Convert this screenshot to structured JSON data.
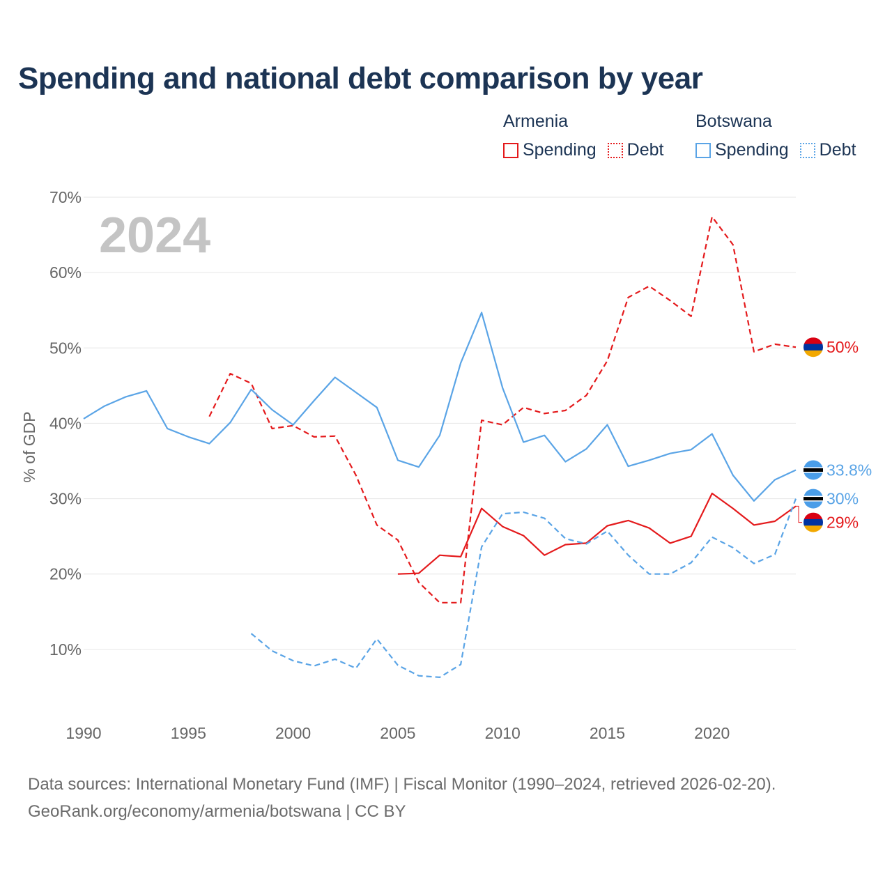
{
  "title": "Spending and national debt comparison by year",
  "legend": {
    "armenia": {
      "name": "Armenia",
      "spending": "Spending",
      "debt": "Debt"
    },
    "botswana": {
      "name": "Botswana",
      "spending": "Spending",
      "debt": "Debt"
    }
  },
  "colors": {
    "armenia": "#e41a1c",
    "botswana": "#5aa4e6",
    "grid": "#e6e6e6",
    "axis_text": "#666666",
    "year_watermark": "#c4c4c4"
  },
  "footer": {
    "line1": "Data sources: International Monetary Fund (IMF) | Fiscal Monitor (1990–2024, retrieved 2026-02-20).",
    "line2": "GeoRank.org/economy/armenia/botswana | CC BY"
  },
  "chart_data": {
    "type": "line",
    "title": "Spending and national debt comparison by year",
    "year_label": "2024",
    "ylabel": "% of GDP",
    "xlabel": "",
    "xlim": [
      1990,
      2024
    ],
    "ylim": [
      0,
      70
    ],
    "x_ticks": [
      "1990",
      "1995",
      "2000",
      "2005",
      "2010",
      "2015",
      "2020"
    ],
    "y_ticks": [
      "10%",
      "20%",
      "30%",
      "40%",
      "50%",
      "60%",
      "70%"
    ],
    "grid": true,
    "series": [
      {
        "name": "Armenia Spending",
        "country": "armenia",
        "style": "solid",
        "x": [
          2005,
          2006,
          2007,
          2008,
          2009,
          2010,
          2011,
          2012,
          2013,
          2014,
          2015,
          2016,
          2017,
          2018,
          2019,
          2020,
          2021,
          2022,
          2023,
          2024
        ],
        "values": [
          20.0,
          20.1,
          22.5,
          22.3,
          28.7,
          26.3,
          25.1,
          22.5,
          23.9,
          24.1,
          26.4,
          27.1,
          26.1,
          24.1,
          25.0,
          30.7,
          28.7,
          26.5,
          27.0,
          29.0
        ],
        "end_label": "29%"
      },
      {
        "name": "Armenia Debt",
        "country": "armenia",
        "style": "dashed",
        "x": [
          1996,
          1997,
          1998,
          1999,
          2000,
          2001,
          2002,
          2003,
          2004,
          2005,
          2006,
          2007,
          2008,
          2009,
          2010,
          2011,
          2012,
          2013,
          2014,
          2015,
          2016,
          2017,
          2018,
          2019,
          2020,
          2021,
          2022,
          2023,
          2024
        ],
        "values": [
          40.9,
          46.6,
          45.3,
          39.3,
          39.7,
          38.2,
          38.3,
          33.1,
          26.5,
          24.5,
          18.9,
          16.2,
          16.2,
          40.4,
          39.8,
          42.1,
          41.3,
          41.7,
          43.7,
          48.3,
          56.7,
          58.2,
          56.3,
          54.2,
          67.4,
          63.7,
          49.5,
          50.5,
          50.1
        ],
        "end_label": "50%"
      },
      {
        "name": "Botswana Spending",
        "country": "botswana",
        "style": "solid",
        "x": [
          1990,
          1991,
          1992,
          1993,
          1994,
          1995,
          1996,
          1997,
          1998,
          1999,
          2000,
          2001,
          2002,
          2003,
          2004,
          2005,
          2006,
          2007,
          2008,
          2009,
          2010,
          2011,
          2012,
          2013,
          2014,
          2015,
          2016,
          2017,
          2018,
          2019,
          2020,
          2021,
          2022,
          2023,
          2024
        ],
        "values": [
          40.6,
          42.3,
          43.5,
          44.3,
          39.3,
          38.2,
          37.3,
          40.1,
          44.5,
          41.8,
          39.8,
          43.0,
          46.1,
          44.1,
          42.1,
          35.1,
          34.2,
          38.4,
          48.0,
          54.7,
          44.7,
          37.5,
          38.4,
          34.9,
          36.6,
          39.8,
          34.3,
          35.1,
          36.0,
          36.5,
          38.6,
          33.1,
          29.7,
          32.5,
          33.8
        ],
        "end_label": "33.8%"
      },
      {
        "name": "Botswana Debt",
        "country": "botswana",
        "style": "dashed",
        "x": [
          1998,
          1999,
          2000,
          2001,
          2002,
          2003,
          2004,
          2005,
          2006,
          2007,
          2008,
          2009,
          2010,
          2011,
          2012,
          2013,
          2014,
          2015,
          2016,
          2017,
          2018,
          2019,
          2020,
          2021,
          2022,
          2023,
          2024
        ],
        "values": [
          12.1,
          9.8,
          8.5,
          7.8,
          8.7,
          7.5,
          11.4,
          7.9,
          6.5,
          6.3,
          8.0,
          23.6,
          28.0,
          28.2,
          27.4,
          24.7,
          24.0,
          25.7,
          22.5,
          20.0,
          20.0,
          21.5,
          24.9,
          23.5,
          21.4,
          22.6,
          30.0
        ],
        "end_label": "30%"
      }
    ]
  }
}
